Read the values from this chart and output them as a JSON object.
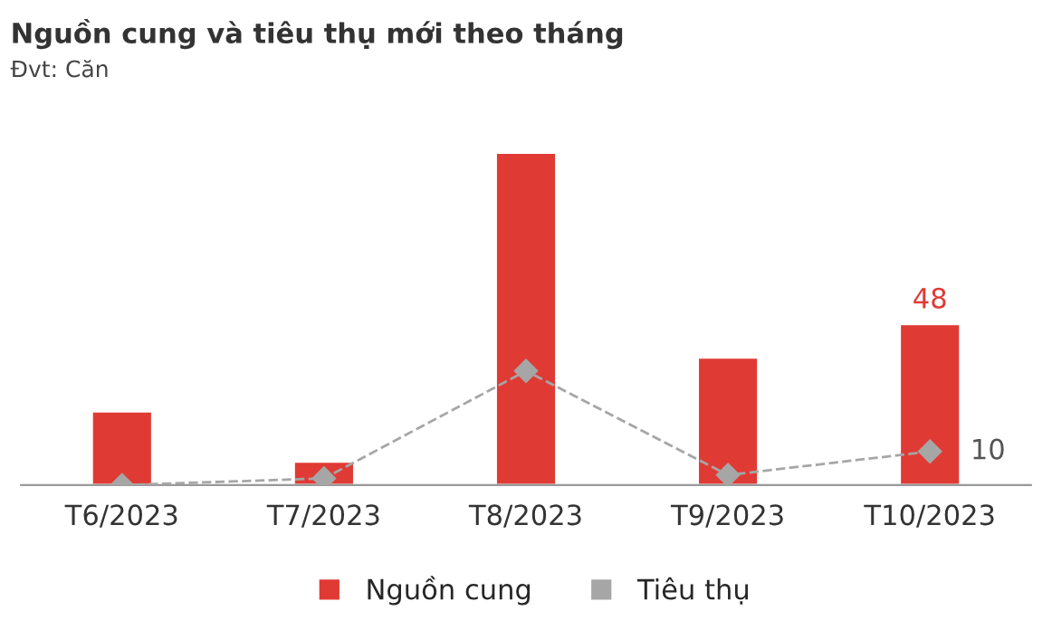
{
  "chart_data": {
    "type": "bar",
    "title": "Nguồn cung và tiêu thụ mới theo tháng",
    "subtitle": "Đvt: Căn",
    "categories": [
      "T6/2023",
      "T7/2023",
      "T8/2023",
      "T9/2023",
      "T10/2023"
    ],
    "legend": "bottom",
    "grid": false,
    "series": [
      {
        "name": "Nguồn cung",
        "color": "#e03a35",
        "values": [
          22,
          7,
          99,
          38,
          48
        ],
        "value_labels": [
          null,
          null,
          null,
          null,
          "48"
        ]
      },
      {
        "name": "Tiêu thụ",
        "type": "line",
        "color": "#a6a6a6",
        "marker": "diamond",
        "line_style": "dashed",
        "values": [
          0,
          2,
          34,
          3,
          10
        ],
        "value_labels": [
          null,
          null,
          null,
          null,
          "10"
        ]
      }
    ]
  }
}
